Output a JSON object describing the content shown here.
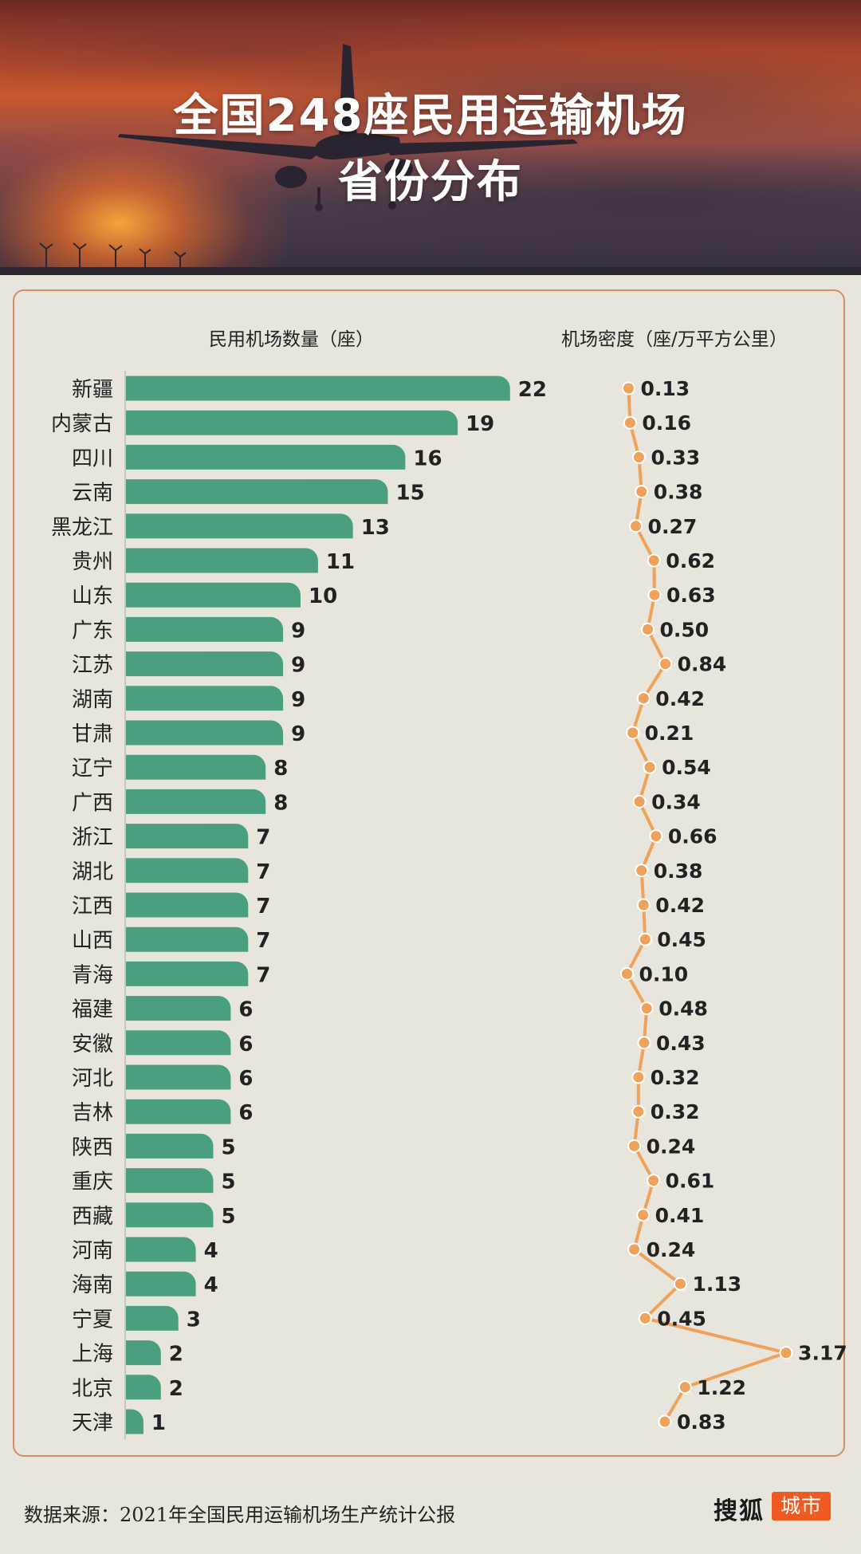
{
  "header": {
    "title_line1": "全国248座民用运输机场",
    "title_line2": "省份分布"
  },
  "columns": {
    "count_label": "民用机场数量（座）",
    "density_label": "机场密度（座/万平方公里）"
  },
  "chart_data": {
    "type": "bar",
    "title": "全国248座民用运输机场省份分布",
    "categories": [
      "新疆",
      "内蒙古",
      "四川",
      "云南",
      "黑龙江",
      "贵州",
      "山东",
      "广东",
      "江苏",
      "湖南",
      "甘肃",
      "辽宁",
      "广西",
      "浙江",
      "湖北",
      "江西",
      "山西",
      "青海",
      "福建",
      "安徽",
      "河北",
      "吉林",
      "陕西",
      "重庆",
      "西藏",
      "河南",
      "海南",
      "宁夏",
      "上海",
      "北京",
      "天津"
    ],
    "series": [
      {
        "name": "民用机场数量（座）",
        "type": "bar",
        "values": [
          22,
          19,
          16,
          15,
          13,
          11,
          10,
          9,
          9,
          9,
          9,
          8,
          8,
          7,
          7,
          7,
          7,
          7,
          6,
          6,
          6,
          6,
          5,
          5,
          5,
          4,
          4,
          3,
          2,
          2,
          1
        ],
        "color": "#4aa07e"
      },
      {
        "name": "机场密度（座/万平方公里）",
        "type": "line",
        "values": [
          0.13,
          0.16,
          0.33,
          0.38,
          0.27,
          0.62,
          0.63,
          0.5,
          0.84,
          0.42,
          0.21,
          0.54,
          0.34,
          0.66,
          0.38,
          0.42,
          0.45,
          0.1,
          0.48,
          0.43,
          0.32,
          0.32,
          0.24,
          0.61,
          0.41,
          0.24,
          1.13,
          0.45,
          3.17,
          1.22,
          0.83
        ],
        "labels": [
          "0.13",
          "0.16",
          "0.33",
          "0.38",
          "0.27",
          "0.62",
          "0.63",
          "0.50",
          "0.84",
          "0.42",
          "0.21",
          "0.54",
          "0.34",
          "0.66",
          "0.38",
          "0.42",
          "0.45",
          "0.10",
          "0.48",
          "0.43",
          "0.32",
          "0.32",
          "0.24",
          "0.61",
          "0.41",
          "0.24",
          "1.13",
          "0.45",
          "3.17",
          "1.22",
          "0.83"
        ],
        "color": "#f0a15a"
      }
    ]
  },
  "footer": {
    "source": "数据来源：2021年全国民用运输机场生产统计公报",
    "brand": "搜狐",
    "brand_tag": "城市"
  }
}
